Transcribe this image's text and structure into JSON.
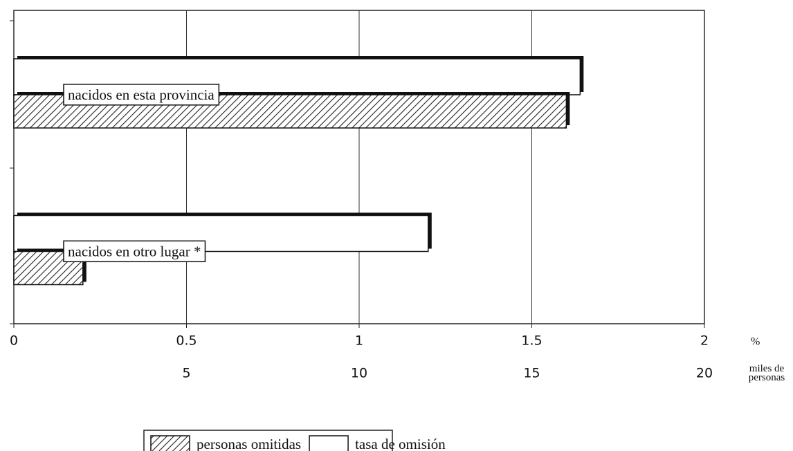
{
  "chart_data": {
    "type": "bar",
    "orientation": "horizontal",
    "categories": [
      "nacidos en esta provincia",
      "nacidos en otro lugar *"
    ],
    "series": [
      {
        "name": "tasa de omisión",
        "color": "#ffffff",
        "values": [
          1.64,
          1.2
        ]
      },
      {
        "name": "personas omitidas",
        "color": "hatch",
        "axis": "x2",
        "values": [
          16,
          2
        ]
      }
    ],
    "xlabel": "%",
    "x2label": "miles de personas",
    "xlim": [
      0,
      2
    ],
    "xticks": [
      0,
      0.5,
      1,
      1.5,
      2
    ],
    "x2lim": [
      0,
      20
    ],
    "x2ticks": [
      5,
      10,
      15,
      20
    ],
    "grid": true,
    "legend": "bottom"
  }
}
